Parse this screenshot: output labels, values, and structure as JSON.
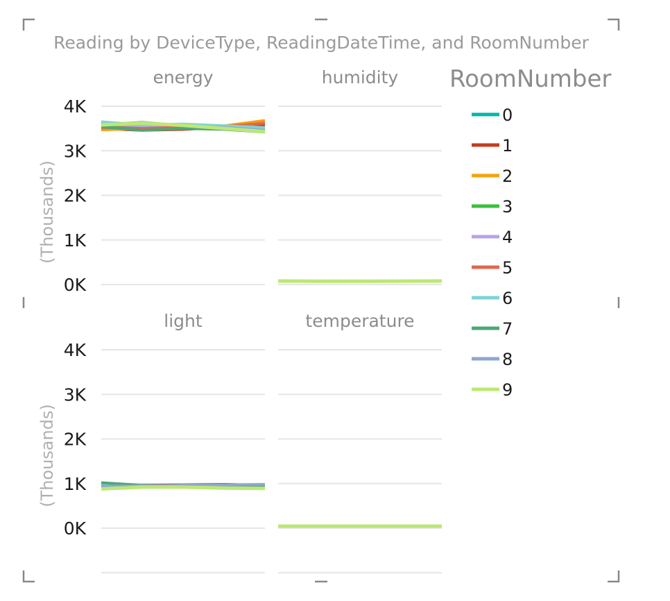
{
  "chart_data": {
    "type": "line",
    "title": "Reading by DeviceType, ReadingDateTime, and RoomNumber",
    "ylabel": "(Thousands)",
    "y_ticks": [
      "4K",
      "3K",
      "2K",
      "1K",
      "0K"
    ],
    "ylim": [
      0,
      4000
    ],
    "legend": {
      "title": "RoomNumber",
      "position": "right"
    },
    "series_colors": [
      "#01b8aa",
      "#c43c1f",
      "#f2a30f",
      "#37c337",
      "#b7a3ea",
      "#e0684f",
      "#7ed3d6",
      "#4ea778",
      "#8fa6d0",
      "#bce875"
    ],
    "room_numbers": [
      "0",
      "1",
      "2",
      "3",
      "4",
      "5",
      "6",
      "7",
      "8",
      "9"
    ],
    "facets": [
      {
        "name": "energy",
        "series": [
          {
            "name": "0",
            "values": [
              3550,
              3530,
              3560,
              3520,
              3500
            ]
          },
          {
            "name": "1",
            "values": [
              3500,
              3460,
              3480,
              3520,
              3580
            ]
          },
          {
            "name": "2",
            "values": [
              3470,
              3500,
              3520,
              3560,
              3680
            ]
          },
          {
            "name": "3",
            "values": [
              3560,
              3520,
              3540,
              3510,
              3450
            ]
          },
          {
            "name": "4",
            "values": [
              3600,
              3560,
              3550,
              3540,
              3500
            ]
          },
          {
            "name": "5",
            "values": [
              3520,
              3500,
              3530,
              3540,
              3620
            ]
          },
          {
            "name": "6",
            "values": [
              3650,
              3580,
              3600,
              3560,
              3520
            ]
          },
          {
            "name": "7",
            "values": [
              3540,
              3460,
              3500,
              3480,
              3420
            ]
          },
          {
            "name": "8",
            "values": [
              3580,
              3640,
              3560,
              3520,
              3460
            ]
          },
          {
            "name": "9",
            "values": [
              3580,
              3620,
              3570,
              3500,
              3430
            ]
          }
        ]
      },
      {
        "name": "humidity",
        "series": [
          {
            "name": "0",
            "values": [
              80,
              75,
              72,
              74,
              78
            ]
          },
          {
            "name": "1",
            "values": [
              78,
              76,
              74,
              76,
              80
            ]
          },
          {
            "name": "2",
            "values": [
              82,
              78,
              76,
              75,
              79
            ]
          },
          {
            "name": "3",
            "values": [
              79,
              74,
              73,
              77,
              80
            ]
          },
          {
            "name": "4",
            "values": [
              81,
              77,
              75,
              76,
              78
            ]
          },
          {
            "name": "5",
            "values": [
              77,
              75,
              74,
              75,
              79
            ]
          },
          {
            "name": "6",
            "values": [
              80,
              76,
              73,
              74,
              77
            ]
          },
          {
            "name": "7",
            "values": [
              78,
              74,
              72,
              75,
              78
            ]
          },
          {
            "name": "8",
            "values": [
              79,
              76,
              74,
              76,
              79
            ]
          },
          {
            "name": "9",
            "values": [
              80,
              75,
              74,
              76,
              80
            ]
          }
        ]
      },
      {
        "name": "light",
        "series": [
          {
            "name": "0",
            "values": [
              950,
              930,
              940,
              920,
              930
            ]
          },
          {
            "name": "1",
            "values": [
              920,
              960,
              970,
              980,
              960
            ]
          },
          {
            "name": "2",
            "values": [
              940,
              950,
              960,
              950,
              940
            ]
          },
          {
            "name": "3",
            "values": [
              960,
              940,
              950,
              930,
              920
            ]
          },
          {
            "name": "4",
            "values": [
              930,
              950,
              940,
              950,
              960
            ]
          },
          {
            "name": "5",
            "values": [
              910,
              940,
              960,
              970,
              950
            ]
          },
          {
            "name": "6",
            "values": [
              970,
              940,
              930,
              950,
              960
            ]
          },
          {
            "name": "7",
            "values": [
              1020,
              960,
              940,
              930,
              920
            ]
          },
          {
            "name": "8",
            "values": [
              940,
              950,
              960,
              970,
              980
            ]
          },
          {
            "name": "9",
            "values": [
              880,
              920,
              920,
              900,
              890
            ]
          }
        ]
      },
      {
        "name": "temperature",
        "series": [
          {
            "name": "0",
            "values": [
              45,
              44,
              46,
              45,
              44
            ]
          },
          {
            "name": "1",
            "values": [
              46,
              45,
              44,
              45,
              46
            ]
          },
          {
            "name": "2",
            "values": [
              44,
              46,
              45,
              44,
              45
            ]
          },
          {
            "name": "3",
            "values": [
              45,
              45,
              46,
              46,
              45
            ]
          },
          {
            "name": "4",
            "values": [
              46,
              44,
              45,
              45,
              44
            ]
          },
          {
            "name": "5",
            "values": [
              44,
              45,
              45,
              46,
              46
            ]
          },
          {
            "name": "6",
            "values": [
              45,
              46,
              44,
              45,
              45
            ]
          },
          {
            "name": "7",
            "values": [
              46,
              45,
              45,
              44,
              44
            ]
          },
          {
            "name": "8",
            "values": [
              45,
              44,
              46,
              45,
              46
            ]
          },
          {
            "name": "9",
            "values": [
              45,
              45,
              45,
              45,
              45
            ]
          }
        ]
      }
    ]
  }
}
